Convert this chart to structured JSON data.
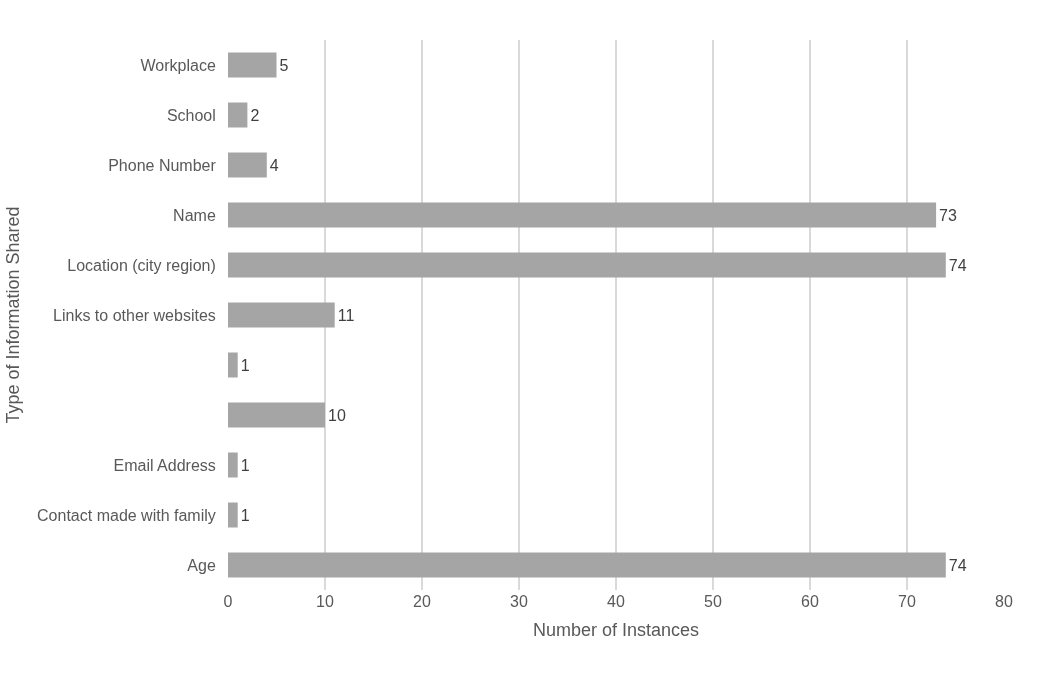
{
  "chart_data": {
    "type": "bar",
    "orientation": "horizontal",
    "xlabel": "Number of Instances",
    "ylabel": "Type of Information Shared",
    "categories": [
      "Workplace",
      "School",
      "Phone Number",
      "Name",
      "Location (city region)",
      "Links to other websites",
      null,
      null,
      "Email Address",
      "Contact made with family",
      "Age"
    ],
    "values": [
      5,
      2,
      4,
      73,
      74,
      11,
      1,
      10,
      1,
      1,
      74
    ],
    "color": "#a5a5a5",
    "data_labels": true,
    "xlim": [
      0,
      80
    ],
    "xticks": [
      0,
      10,
      20,
      30,
      40,
      50,
      60,
      70,
      80
    ],
    "grid": "x"
  }
}
